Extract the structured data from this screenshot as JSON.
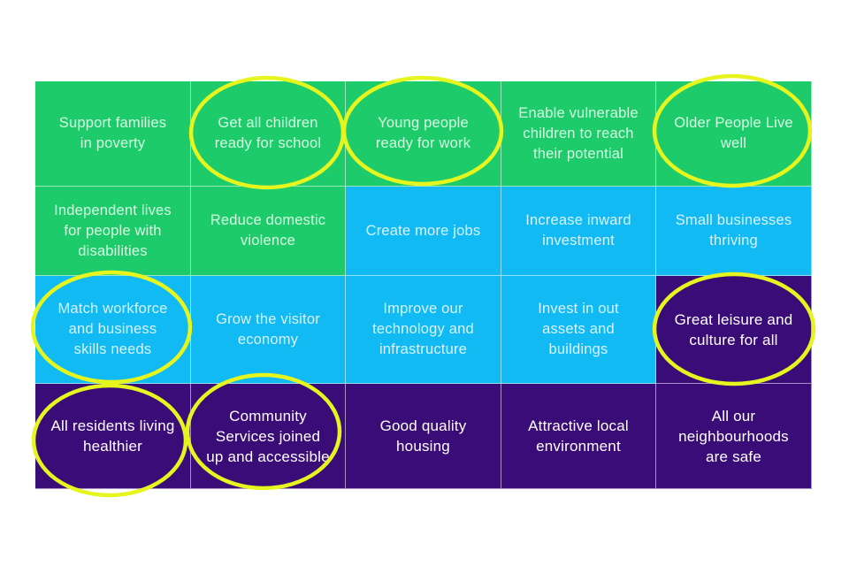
{
  "grid": {
    "cells": [
      {
        "text": "Support families\nin poverty",
        "color": "green",
        "circled": false
      },
      {
        "text": "Get all children\nready for school",
        "color": "green",
        "circled": true
      },
      {
        "text": "Young people\nready for work",
        "color": "green",
        "circled": true
      },
      {
        "text": "Enable vulnerable\nchildren to reach\ntheir potential",
        "color": "green",
        "circled": false
      },
      {
        "text": "Older People Live\nwell",
        "color": "green",
        "circled": true
      },
      {
        "text": "Independent lives\nfor people with\ndisabilities",
        "color": "green",
        "circled": false
      },
      {
        "text": "Reduce domestic\nviolence",
        "color": "green",
        "circled": false
      },
      {
        "text": "Create more jobs",
        "color": "blue",
        "circled": false
      },
      {
        "text": "Increase inward\ninvestment",
        "color": "blue",
        "circled": false
      },
      {
        "text": "Small businesses\nthriving",
        "color": "blue",
        "circled": false
      },
      {
        "text": "Match workforce\nand business\nskills needs",
        "color": "blue",
        "circled": true
      },
      {
        "text": "Grow the visitor\neconomy",
        "color": "blue",
        "circled": false
      },
      {
        "text": "Improve our\ntechnology and\ninfrastructure",
        "color": "blue",
        "circled": false
      },
      {
        "text": "Invest in out\nassets and\nbuildings",
        "color": "blue",
        "circled": false
      },
      {
        "text": "Great leisure and\nculture for all",
        "color": "purple",
        "circled": true
      },
      {
        "text": "All residents living\nhealthier",
        "color": "purple",
        "circled": true
      },
      {
        "text": "Community\nServices joined\nup and accessible",
        "color": "purple",
        "circled": true
      },
      {
        "text": "Good quality\nhousing",
        "color": "purple",
        "circled": false
      },
      {
        "text": "Attractive local\nenvironment",
        "color": "purple",
        "circled": false
      },
      {
        "text": "All our\nneighbourhoods\nare safe",
        "color": "purple",
        "circled": false
      }
    ]
  },
  "colors": {
    "green": "#1ecb6b",
    "blue": "#11baf2",
    "purple": "#3a0c78",
    "highlight": "#e6f51e"
  }
}
